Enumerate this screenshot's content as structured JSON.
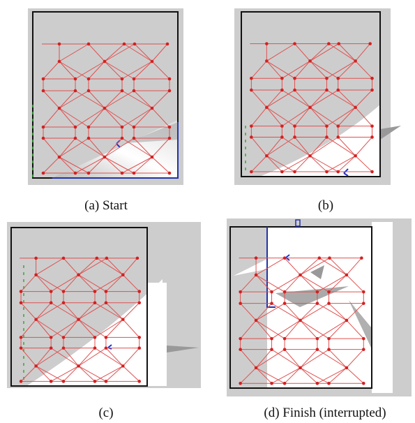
{
  "captions": [
    "(a) Start",
    "(b)",
    "(c)",
    "(d) Finish (interrupted)"
  ]
}
